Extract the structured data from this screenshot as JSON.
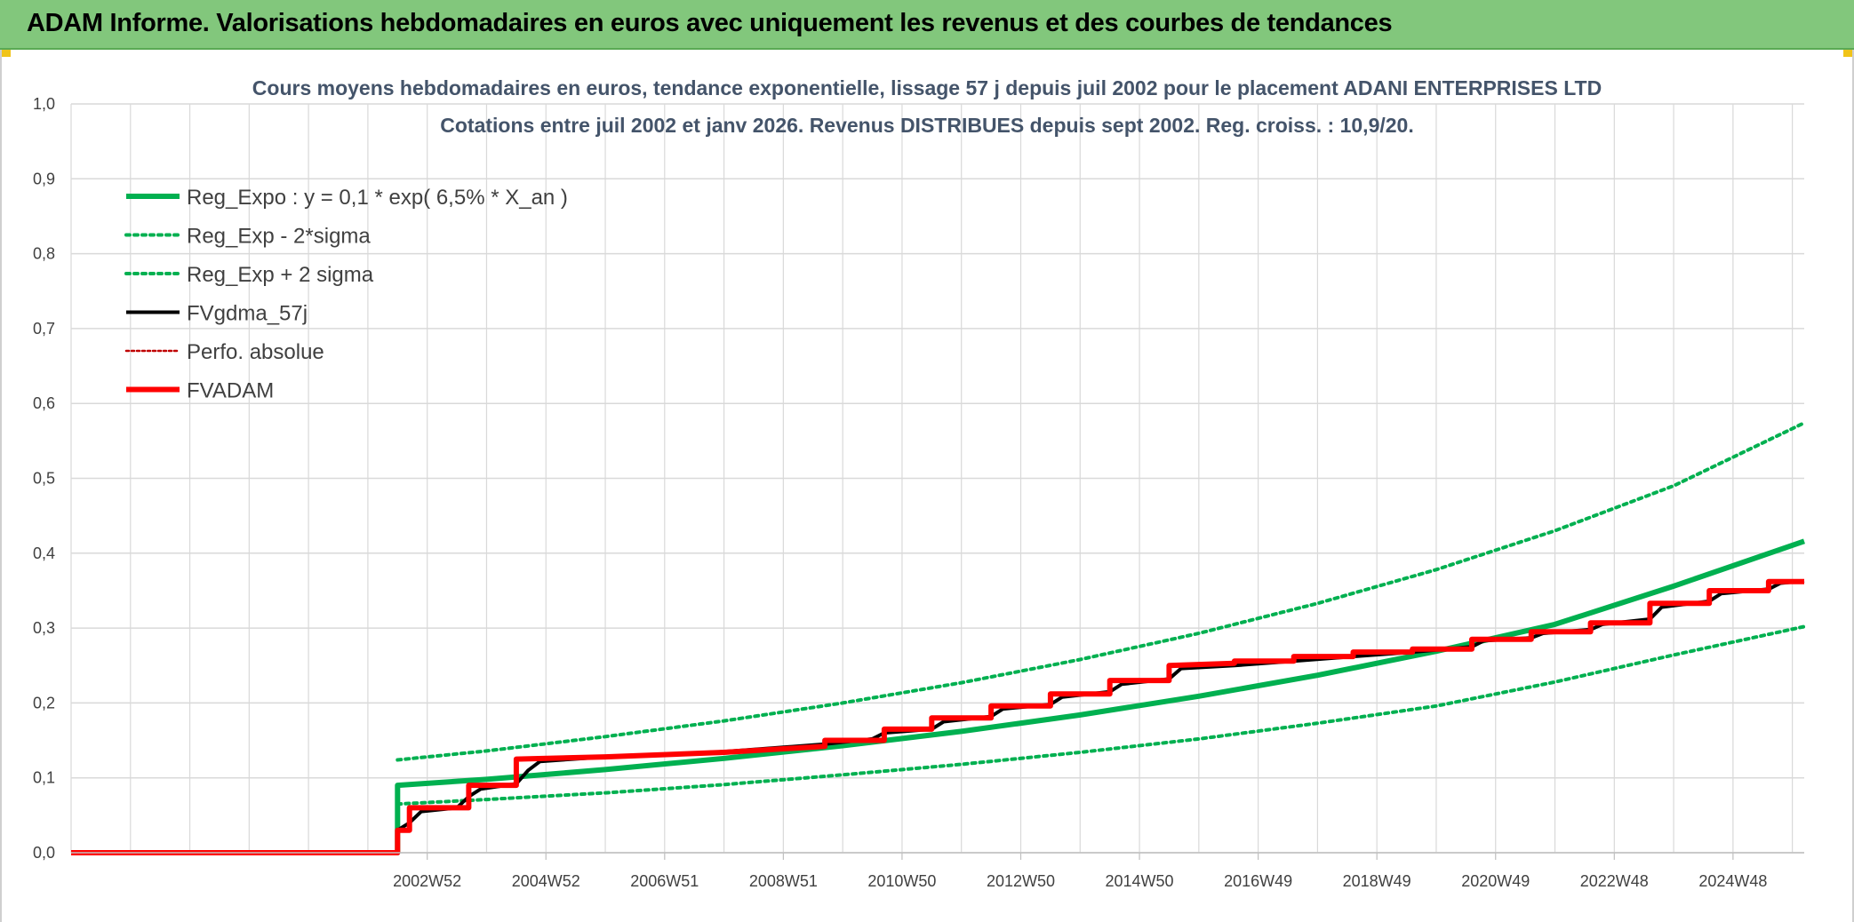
{
  "banner": {
    "title": "ADAM Informe. Valorisations hebdomadaires en euros avec uniquement les revenus et des courbes de tendances",
    "bg_color": "#82c77c"
  },
  "chart_data": {
    "type": "line",
    "title": "Cours moyens hebdomadaires en euros, tendance exponentielle, lissage 57 j depuis juil 2002 pour le placement ADANI ENTERPRISES LTD",
    "subtitle": "Cotations entre juil 2002 et janv 2026. Revenus DISTRIBUES depuis sept 2002. Reg. croiss. : 10,9/20.",
    "xlabel": "",
    "ylabel": "",
    "x_range": [
      1997.0,
      2026.2
    ],
    "ylim": [
      0,
      1.0
    ],
    "yticks": [
      "0,0",
      "0,1",
      "0,2",
      "0,3",
      "0,4",
      "0,5",
      "0,6",
      "0,7",
      "0,8",
      "0,9",
      "1,0"
    ],
    "ytick_values": [
      0,
      0.1,
      0.2,
      0.3,
      0.4,
      0.5,
      0.6,
      0.7,
      0.8,
      0.9,
      1.0
    ],
    "xticks": [
      {
        "label": "2002W52",
        "x": 2003.0
      },
      {
        "label": "2004W52",
        "x": 2005.0
      },
      {
        "label": "2006W51",
        "x": 2007.0
      },
      {
        "label": "2008W51",
        "x": 2009.0
      },
      {
        "label": "2010W50",
        "x": 2011.0
      },
      {
        "label": "2012W50",
        "x": 2013.0
      },
      {
        "label": "2014W50",
        "x": 2015.0
      },
      {
        "label": "2016W49",
        "x": 2017.0
      },
      {
        "label": "2018W49",
        "x": 2019.0
      },
      {
        "label": "2020W49",
        "x": 2021.0
      },
      {
        "label": "2022W48",
        "x": 2023.0
      },
      {
        "label": "2024W48",
        "x": 2025.0
      }
    ],
    "grid": true,
    "legend_position": "top-left",
    "series": [
      {
        "name": "Reg_Expo : y = 0,1 * exp( 6,5% *  X_an )",
        "color": "#00b050",
        "style": "solid",
        "width": "thick",
        "points": [
          [
            1997.0,
            0
          ],
          [
            2002.5,
            0
          ],
          [
            2002.5,
            0.09
          ],
          [
            2004,
            0.098
          ],
          [
            2006,
            0.111
          ],
          [
            2008,
            0.126
          ],
          [
            2010,
            0.143
          ],
          [
            2012,
            0.162
          ],
          [
            2014,
            0.184
          ],
          [
            2016,
            0.209
          ],
          [
            2018,
            0.237
          ],
          [
            2020,
            0.269
          ],
          [
            2022,
            0.305
          ],
          [
            2024,
            0.356
          ],
          [
            2026.2,
            0.416
          ]
        ]
      },
      {
        "name": "Reg_Exp - 2*sigma",
        "color": "#00b050",
        "style": "dotted",
        "width": "medium",
        "points": [
          [
            2002.5,
            0.065
          ],
          [
            2004,
            0.071
          ],
          [
            2006,
            0.08
          ],
          [
            2008,
            0.091
          ],
          [
            2010,
            0.104
          ],
          [
            2012,
            0.118
          ],
          [
            2014,
            0.134
          ],
          [
            2016,
            0.152
          ],
          [
            2018,
            0.173
          ],
          [
            2020,
            0.196
          ],
          [
            2022,
            0.228
          ],
          [
            2024,
            0.264
          ],
          [
            2026.2,
            0.302
          ]
        ]
      },
      {
        "name": "Reg_Exp + 2 sigma",
        "color": "#00b050",
        "style": "dotted",
        "width": "medium",
        "points": [
          [
            2002.5,
            0.124
          ],
          [
            2004,
            0.136
          ],
          [
            2006,
            0.155
          ],
          [
            2008,
            0.176
          ],
          [
            2010,
            0.2
          ],
          [
            2012,
            0.227
          ],
          [
            2014,
            0.258
          ],
          [
            2016,
            0.293
          ],
          [
            2018,
            0.333
          ],
          [
            2020,
            0.378
          ],
          [
            2022,
            0.43
          ],
          [
            2024,
            0.49
          ],
          [
            2026.2,
            0.574
          ]
        ]
      },
      {
        "name": "FVgdma_57j",
        "color": "#000000",
        "style": "solid",
        "width": "medium",
        "points": [
          [
            1997.0,
            0
          ],
          [
            2002.5,
            0
          ],
          [
            2002.5,
            0.03
          ],
          [
            2002.7,
            0.04
          ],
          [
            2002.9,
            0.055
          ],
          [
            2003.5,
            0.06
          ],
          [
            2003.7,
            0.075
          ],
          [
            2003.9,
            0.085
          ],
          [
            2004.5,
            0.092
          ],
          [
            2004.7,
            0.11
          ],
          [
            2004.9,
            0.122
          ],
          [
            2006,
            0.128
          ],
          [
            2008,
            0.135
          ],
          [
            2009.7,
            0.145
          ],
          [
            2010.5,
            0.152
          ],
          [
            2010.7,
            0.16
          ],
          [
            2011.5,
            0.165
          ],
          [
            2011.7,
            0.175
          ],
          [
            2012.5,
            0.182
          ],
          [
            2012.7,
            0.192
          ],
          [
            2013.5,
            0.198
          ],
          [
            2013.7,
            0.208
          ],
          [
            2014.5,
            0.215
          ],
          [
            2014.7,
            0.225
          ],
          [
            2015.5,
            0.232
          ],
          [
            2015.7,
            0.246
          ],
          [
            2016.6,
            0.25
          ],
          [
            2017.6,
            0.256
          ],
          [
            2018.6,
            0.262
          ],
          [
            2019.6,
            0.268
          ],
          [
            2020.6,
            0.275
          ],
          [
            2020.8,
            0.283
          ],
          [
            2021.6,
            0.287
          ],
          [
            2021.8,
            0.293
          ],
          [
            2022.6,
            0.298
          ],
          [
            2022.8,
            0.305
          ],
          [
            2023.6,
            0.312
          ],
          [
            2023.8,
            0.328
          ],
          [
            2024.6,
            0.336
          ],
          [
            2024.8,
            0.346
          ],
          [
            2025.6,
            0.352
          ],
          [
            2025.8,
            0.36
          ],
          [
            2026.2,
            0.363
          ]
        ]
      },
      {
        "name": "Perfo. absolue",
        "color": "#c00000",
        "style": "dotted",
        "width": "thin",
        "points": []
      },
      {
        "name": "FVADAM",
        "color": "#ff0000",
        "style": "solid",
        "width": "thick",
        "points": [
          [
            1997.0,
            0
          ],
          [
            2002.5,
            0
          ],
          [
            2002.5,
            0.03
          ],
          [
            2002.7,
            0.03
          ],
          [
            2002.7,
            0.06
          ],
          [
            2003.7,
            0.06
          ],
          [
            2003.7,
            0.09
          ],
          [
            2004.5,
            0.09
          ],
          [
            2004.5,
            0.125
          ],
          [
            2006.0,
            0.128
          ],
          [
            2008,
            0.134
          ],
          [
            2009.7,
            0.142
          ],
          [
            2009.7,
            0.15
          ],
          [
            2010.7,
            0.15
          ],
          [
            2010.7,
            0.165
          ],
          [
            2011.5,
            0.165
          ],
          [
            2011.5,
            0.18
          ],
          [
            2012.5,
            0.18
          ],
          [
            2012.5,
            0.196
          ],
          [
            2013.5,
            0.196
          ],
          [
            2013.5,
            0.212
          ],
          [
            2014.5,
            0.212
          ],
          [
            2014.5,
            0.23
          ],
          [
            2015.5,
            0.23
          ],
          [
            2015.5,
            0.25
          ],
          [
            2016.6,
            0.253
          ],
          [
            2016.6,
            0.256
          ],
          [
            2017.6,
            0.256
          ],
          [
            2017.6,
            0.262
          ],
          [
            2018.6,
            0.262
          ],
          [
            2018.6,
            0.268
          ],
          [
            2019.6,
            0.268
          ],
          [
            2019.6,
            0.272
          ],
          [
            2020.6,
            0.272
          ],
          [
            2020.6,
            0.285
          ],
          [
            2021.6,
            0.285
          ],
          [
            2021.6,
            0.295
          ],
          [
            2022.6,
            0.295
          ],
          [
            2022.6,
            0.307
          ],
          [
            2023.6,
            0.307
          ],
          [
            2023.6,
            0.333
          ],
          [
            2024.6,
            0.333
          ],
          [
            2024.6,
            0.35
          ],
          [
            2025.6,
            0.35
          ],
          [
            2025.6,
            0.362
          ],
          [
            2026.2,
            0.362
          ]
        ]
      }
    ]
  }
}
